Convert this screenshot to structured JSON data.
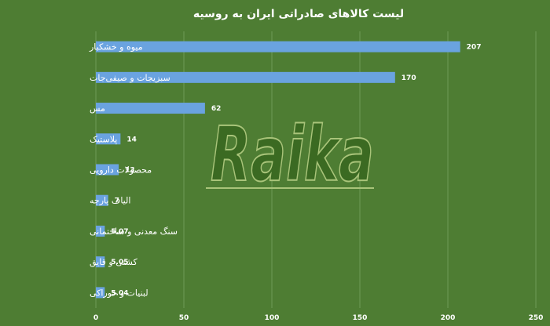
{
  "chart_data": {
    "type": "bar",
    "orientation": "horizontal",
    "title": "لیست کالاهای صادراتی ایران به روسیه",
    "categories": [
      "میوه و خشکبار",
      "سبزیجات و صیفی‌جات",
      "مس",
      "پلاستیک",
      "محصولات دارویی",
      "الیاف پارچه",
      "سنگ معدنی و ساختمانی",
      "کشتی و قایق",
      "لبنیات و خوراکی"
    ],
    "values": [
      207,
      170,
      62,
      14,
      13,
      7,
      5.07,
      5.05,
      5.04
    ],
    "value_labels": [
      "207",
      "170",
      "62",
      "14",
      "13",
      "7",
      "5.07",
      "5.05",
      "5.04"
    ],
    "xlim": [
      0,
      250
    ],
    "xticks": [
      "0",
      "50",
      "100",
      "150",
      "200",
      "250"
    ],
    "grid": true,
    "bar_color": "#6aa3e0",
    "background": "#4e7d33"
  },
  "watermark": {
    "text": "Raika"
  }
}
